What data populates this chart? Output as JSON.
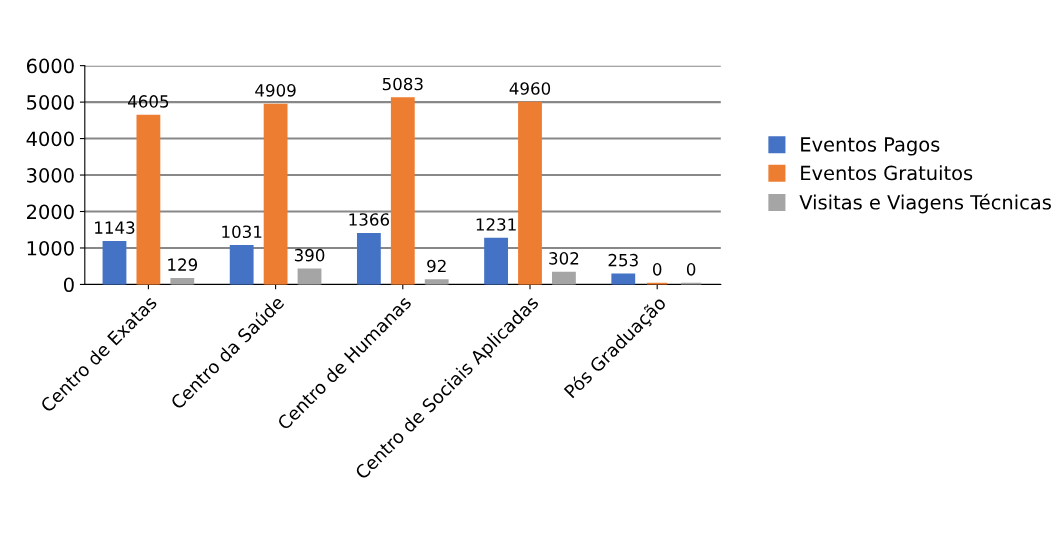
{
  "chart_data": {
    "type": "bar",
    "categories": [
      "Centro de Exatas",
      "Centro da Saúde",
      "Centro de Humanas",
      "Centro de Sociais Aplicadas",
      "Pós Graduação"
    ],
    "series": [
      {
        "name": "Eventos Pagos",
        "color": "#4472c4",
        "values": [
          1143,
          1031,
          1366,
          1231,
          253
        ]
      },
      {
        "name": "Eventos Gratuitos",
        "color": "#ed7d31",
        "values": [
          4605,
          4909,
          5083,
          4960,
          0
        ]
      },
      {
        "name": "Visitas e Viagens Técnicas",
        "color": "#a5a5a5",
        "values": [
          129,
          390,
          92,
          302,
          0
        ]
      }
    ],
    "ylim": [
      0,
      6000
    ],
    "yticks": [
      0,
      1000,
      2000,
      3000,
      4000,
      5000,
      6000
    ],
    "grid": "y",
    "legend": "right",
    "data_labels": true
  }
}
